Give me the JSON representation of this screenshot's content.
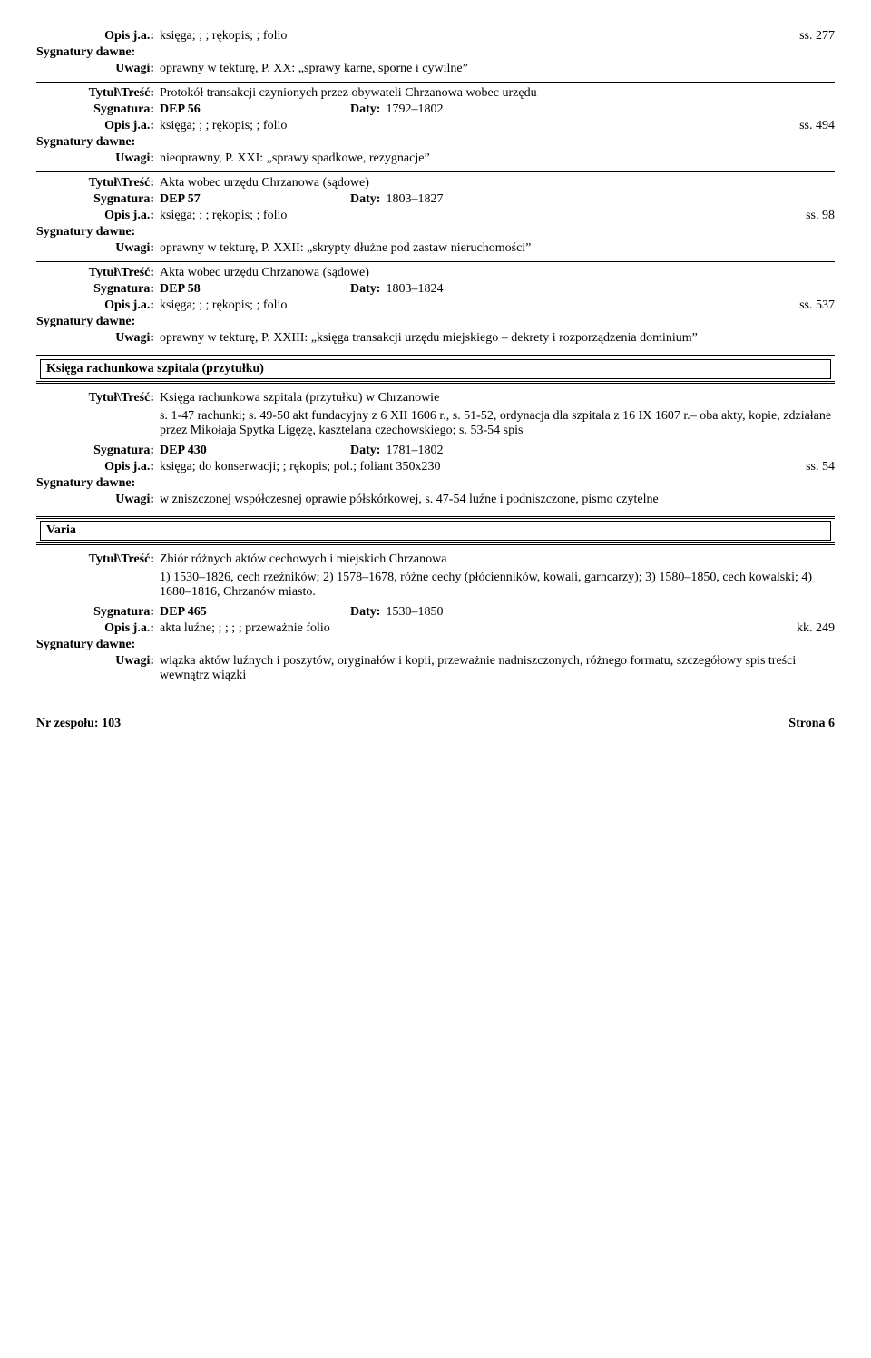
{
  "labels": {
    "opis": "Opis j.a.:",
    "sygDawne": "Sygnatury dawne:",
    "uwagi": "Uwagi:",
    "tytul": "Tytuł\\Treść:",
    "sygnatura": "Sygnatura:",
    "daty": "Daty:"
  },
  "sections": {
    "ksiega": "Księga rachunkowa szpitala (przytułku)",
    "varia": "Varia"
  },
  "entries": [
    {
      "opis": "księga; ; ; rękopis; ; folio",
      "pages": "ss. 277",
      "uwagi": "oprawny w tekturę, P. XX: „sprawy karne, sporne i cywilne”",
      "hrAfter": true
    },
    {
      "tytul": "Protokół transakcji czynionych przez obywateli Chrzanowa wobec urzędu",
      "sygnatura": "DEP 56",
      "daty": "1792–1802",
      "opis": "księga; ; ; rękopis; ; folio",
      "pages": "ss. 494",
      "uwagi": "nieoprawny, P. XXI: „sprawy spadkowe, rezygnacje”",
      "hrAfter": true
    },
    {
      "tytul": "Akta wobec urzędu Chrzanowa (sądowe)",
      "sygnatura": "DEP 57",
      "daty": "1803–1827",
      "opis": "księga; ; ; rękopis; ; folio",
      "pages": "ss. 98",
      "uwagi": "oprawny w tekturę, P. XXII: „skrypty dłużne pod zastaw nieruchomości”",
      "hrAfter": true
    },
    {
      "tytul": "Akta wobec urzędu Chrzanowa (sądowe)",
      "sygnatura": "DEP 58",
      "daty": "1803–1824",
      "opis": "księga; ; ; rękopis; ; folio",
      "pages": "ss. 537",
      "uwagi": "oprawny w tekturę, P. XXIII: „księga transakcji urzędu miejskiego – dekrety i rozporządzenia dominium”",
      "hrAfter": false
    }
  ],
  "ksiegaEntry": {
    "tytul": "Księga rachunkowa szpitala (przytułku) w Chrzanowie",
    "desc": "s. 1-47 rachunki; s. 49-50 akt fundacyjny z 6 XII 1606 r., s. 51-52, ordynacja dla szpitala z 16 IX 1607 r.– oba akty, kopie, zdziałane przez Mikołaja Spytka Ligęzę, kasztelana czechowskiego; s. 53-54 spis",
    "sygnatura": "DEP 430",
    "daty": "1781–1802",
    "opis": "księga; do konserwacji; ; rękopis; pol.; foliant 350x230",
    "pages": "ss. 54",
    "uwagi": "w zniszczonej współczesnej oprawie półskórkowej,  s. 47-54 luźne i podniszczone, pismo czytelne"
  },
  "variaEntry": {
    "tytul": "Zbiór różnych aktów cechowych i miejskich Chrzanowa",
    "desc": "1) 1530–1826, cech rzeźników; 2) 1578–1678, różne cechy (płócienników, kowali, garncarzy); 3) 1580–1850, cech kowalski; 4) 1680–1816, Chrzanów miasto.",
    "sygnatura": "DEP 465",
    "daty": "1530–1850",
    "opis": "akta luźne; ; ; ; ; przeważnie folio",
    "pages": "kk. 249",
    "uwagi": "wiązka aktów luźnych i poszytów, oryginałów i kopii, przeważnie nadniszczonych, różnego formatu, szczegółowy spis treści wewnątrz wiązki"
  },
  "footer": {
    "left": "Nr zespołu: 103",
    "right": "Strona 6"
  }
}
